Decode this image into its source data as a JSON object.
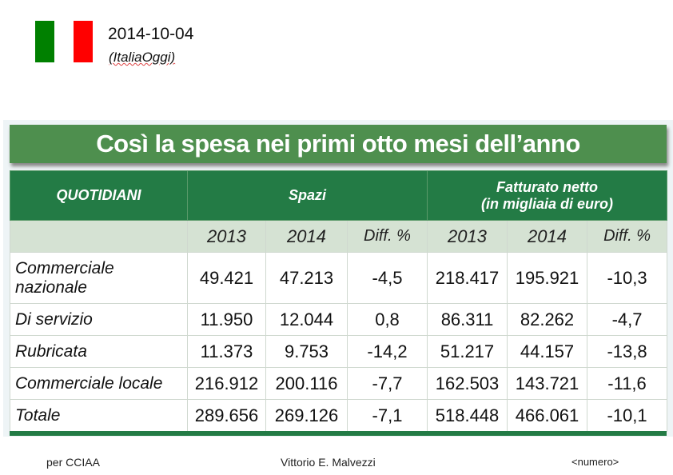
{
  "header": {
    "date": "2014-10-04",
    "source": "(ItaliaOggi)",
    "flag_colors": [
      "#008000",
      "#ffffff",
      "#ff0000"
    ]
  },
  "table": {
    "title": "Così la spesa nei primi otto mesi dell’anno",
    "col_quotidiani": "QUOTIDIANI",
    "group_spazi": "Spazi",
    "group_fatturato_1": "Fatturato netto",
    "group_fatturato_2": "(in migliaia di euro)",
    "subheaders": [
      "2013",
      "2014",
      "Diff. %",
      "2013",
      "2014",
      "Diff. %"
    ],
    "rows": [
      {
        "label": "Commerciale nazionale",
        "values": [
          "49.421",
          "47.213",
          "-4,5",
          "218.417",
          "195.921",
          "-10,3"
        ]
      },
      {
        "label": "Di servizio",
        "values": [
          "11.950",
          "12.044",
          "0,8",
          "86.311",
          "82.262",
          "-4,7"
        ]
      },
      {
        "label": "Rubricata",
        "values": [
          "11.373",
          "9.753",
          "-14,2",
          "51.217",
          "44.157",
          "-13,8"
        ]
      },
      {
        "label": "Commerciale locale",
        "values": [
          "216.912",
          "200.116",
          "-7,7",
          "162.503",
          "143.721",
          "-11,6"
        ]
      },
      {
        "label": "Totale",
        "values": [
          "289.656",
          "269.126",
          "-7,1",
          "518.448",
          "466.061",
          "-10,1"
        ]
      }
    ]
  },
  "footer": {
    "left": "per CCIAA",
    "center": "Vittorio E. Malvezzi",
    "right": "<numero>"
  }
}
